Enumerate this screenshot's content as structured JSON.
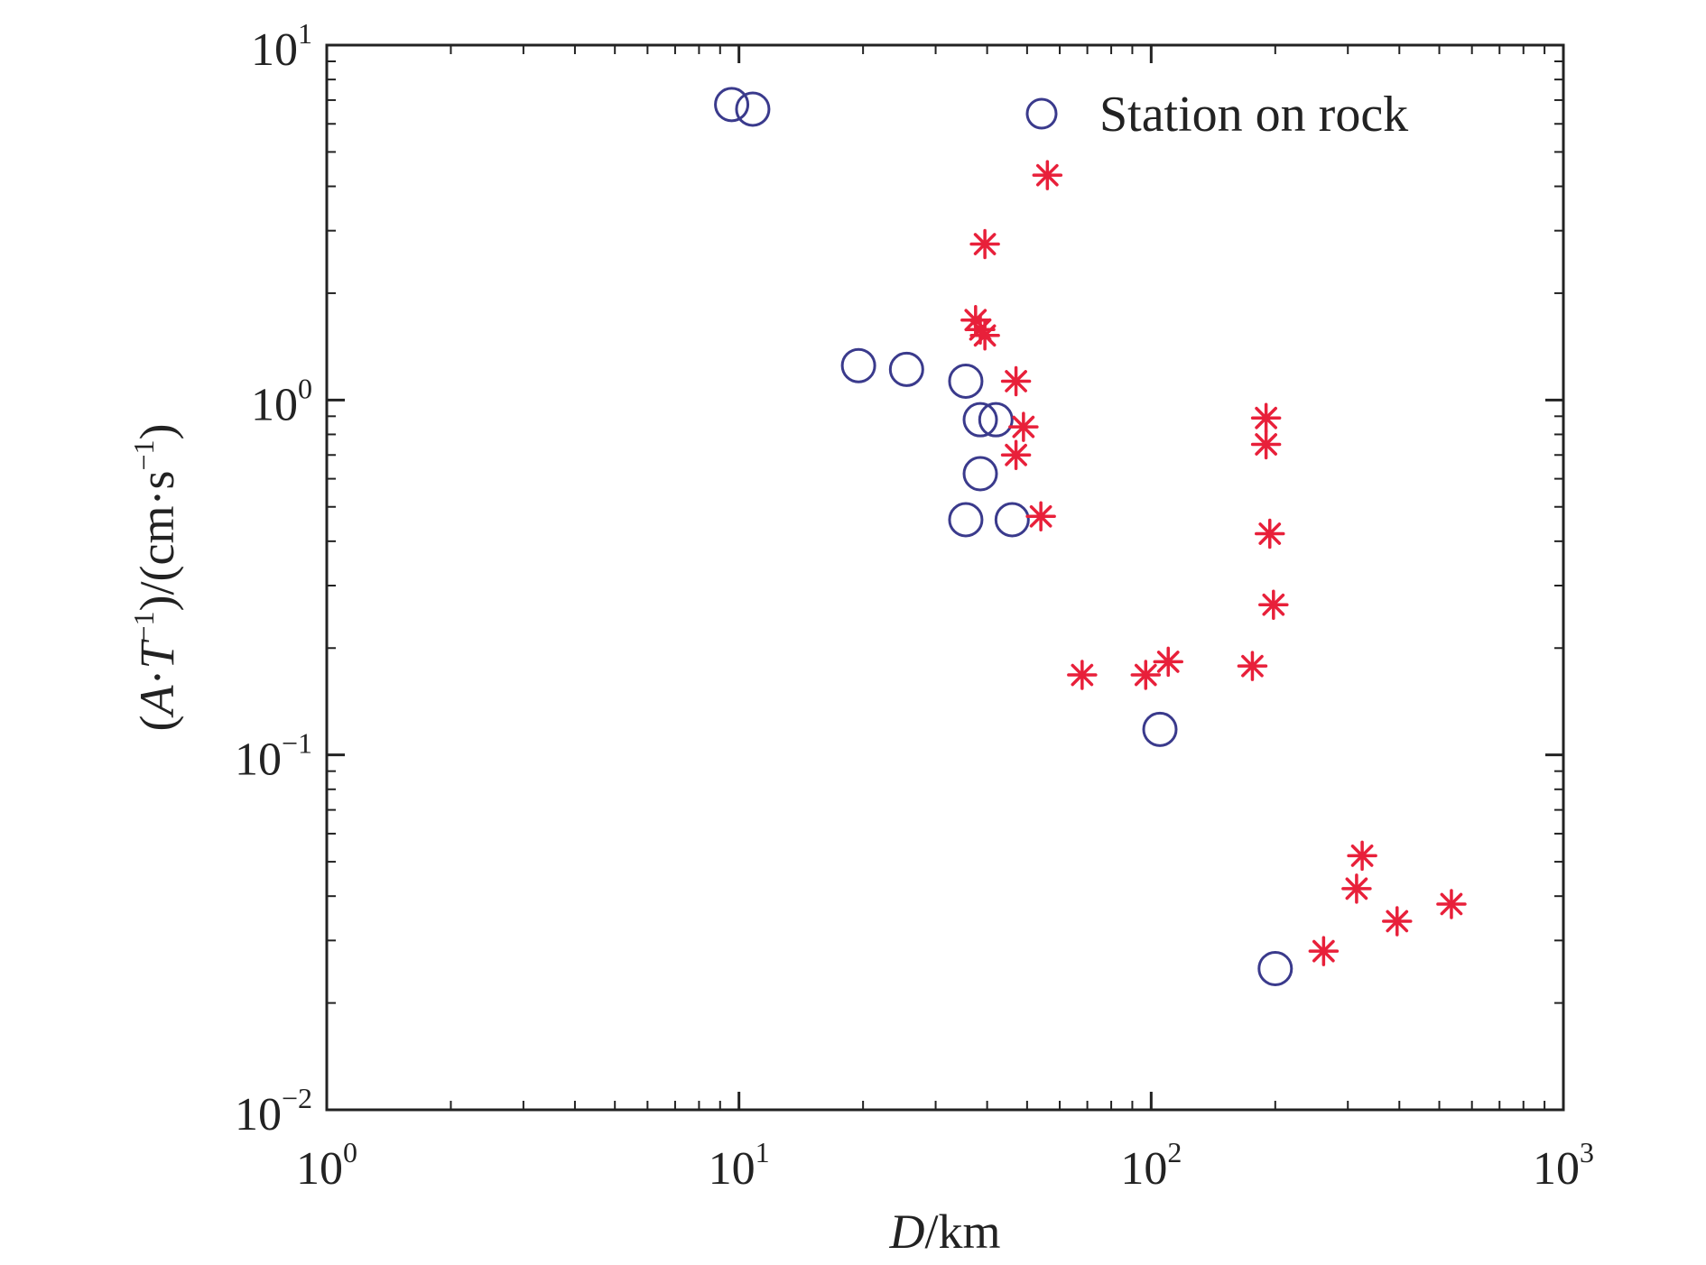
{
  "chart_data": {
    "type": "scatter",
    "title": "",
    "x_scale": "log",
    "y_scale": "log",
    "xlim": [
      1,
      1000
    ],
    "ylim": [
      0.01,
      10
    ],
    "xlabel": {
      "italic": "D",
      "rest": "/km"
    },
    "ylabel": {
      "p1": "(",
      "A": "A",
      "dot1": "·",
      "T": "T",
      "sup1": "−1",
      "p2": ")/(cm·s",
      "sup2": "−1",
      "p3": ")"
    },
    "x_ticks": [
      {
        "value": 1,
        "base": "10",
        "exp": "0"
      },
      {
        "value": 10,
        "base": "10",
        "exp": "1"
      },
      {
        "value": 100,
        "base": "10",
        "exp": "2"
      },
      {
        "value": 1000,
        "base": "10",
        "exp": "3"
      }
    ],
    "y_ticks": [
      {
        "value": 0.01,
        "base": "10",
        "exp": "−2"
      },
      {
        "value": 0.1,
        "base": "10",
        "exp": "−1"
      },
      {
        "value": 1,
        "base": "10",
        "exp": "0"
      },
      {
        "value": 10,
        "base": "10",
        "exp": "1"
      }
    ],
    "grid": false,
    "legend": {
      "position": "top-right"
    },
    "series": [
      {
        "name": "Station on rock",
        "marker": "circle",
        "color": "#3a3a8c",
        "points": [
          {
            "x": 9.6,
            "y": 6.8
          },
          {
            "x": 10.8,
            "y": 6.6
          },
          {
            "x": 19.5,
            "y": 1.25
          },
          {
            "x": 25.5,
            "y": 1.22
          },
          {
            "x": 35.5,
            "y": 1.13
          },
          {
            "x": 38.5,
            "y": 0.88
          },
          {
            "x": 42,
            "y": 0.88
          },
          {
            "x": 38.5,
            "y": 0.62
          },
          {
            "x": 35.5,
            "y": 0.46
          },
          {
            "x": 46,
            "y": 0.46
          },
          {
            "x": 105,
            "y": 0.118
          },
          {
            "x": 200,
            "y": 0.025
          }
        ]
      },
      {
        "name": "",
        "marker": "asterisk",
        "color": "#e8203a",
        "points": [
          {
            "x": 56,
            "y": 4.3
          },
          {
            "x": 39.5,
            "y": 2.75
          },
          {
            "x": 37.5,
            "y": 1.68
          },
          {
            "x": 38.5,
            "y": 1.58
          },
          {
            "x": 39.5,
            "y": 1.52
          },
          {
            "x": 47,
            "y": 1.13
          },
          {
            "x": 49,
            "y": 0.84
          },
          {
            "x": 47,
            "y": 0.7
          },
          {
            "x": 54,
            "y": 0.47
          },
          {
            "x": 68,
            "y": 0.168
          },
          {
            "x": 97,
            "y": 0.168
          },
          {
            "x": 110,
            "y": 0.183
          },
          {
            "x": 176,
            "y": 0.178
          },
          {
            "x": 190,
            "y": 0.89
          },
          {
            "x": 190,
            "y": 0.75
          },
          {
            "x": 194,
            "y": 0.42
          },
          {
            "x": 198,
            "y": 0.265
          },
          {
            "x": 325,
            "y": 0.052
          },
          {
            "x": 315,
            "y": 0.042
          },
          {
            "x": 395,
            "y": 0.034
          },
          {
            "x": 535,
            "y": 0.038
          },
          {
            "x": 262,
            "y": 0.028
          }
        ]
      }
    ]
  }
}
